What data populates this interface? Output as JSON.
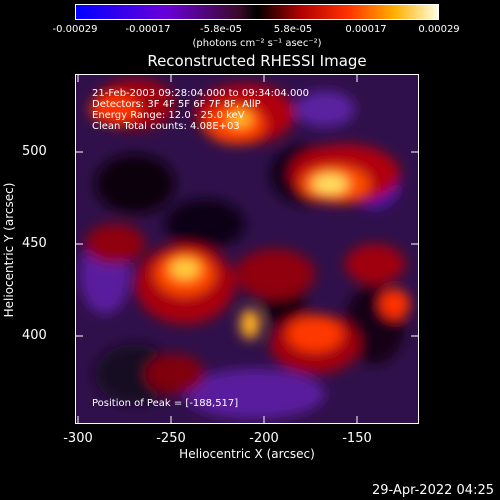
{
  "colorbar": {
    "ticks": [
      "-0.00029",
      "-0.00017",
      "-5.8e-05",
      "5.8e-05",
      "0.00017",
      "0.00029"
    ],
    "unit": "(photons cm⁻² s⁻¹ asec⁻²)"
  },
  "title": "Reconstructed RHESSI Image",
  "annotations": {
    "time": "21-Feb-2003 09:28:04.000 to 09:34:04.000",
    "detectors": "Detectors: 3F 4F 5F 6F 7F 8F, AllP",
    "energy": "Energy Range: 12.0 - 25.0 keV",
    "method": "Clean     Total counts: 4.08E+03",
    "peak": "Position of Peak = [-188,517]"
  },
  "axes": {
    "xlabel": "Heliocentric X (arcsec)",
    "ylabel": "Heliocentric Y (arcsec)",
    "xticks": [
      "-300",
      "-250",
      "-200",
      "-150"
    ],
    "yticks": [
      "500",
      "450",
      "400"
    ]
  },
  "date": "29-Apr-2022 04:25"
}
